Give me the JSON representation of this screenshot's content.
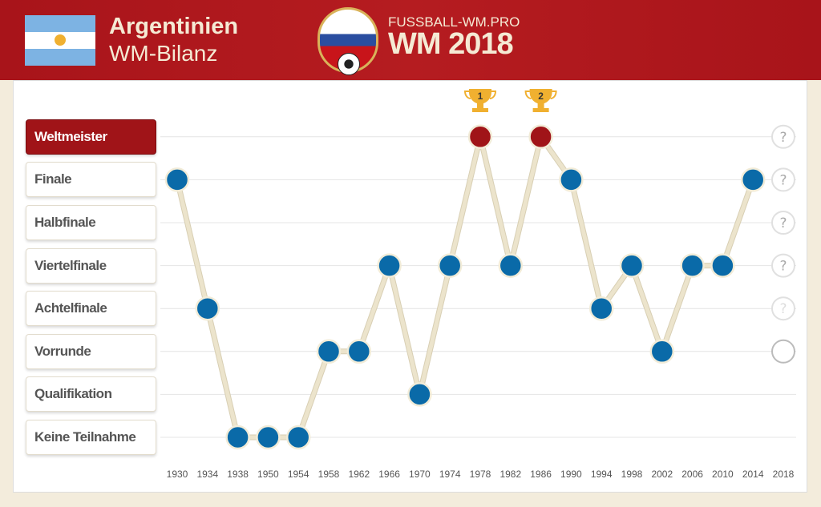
{
  "header": {
    "country": "Argentinien",
    "subtitle": "WM-Bilanz",
    "site": "FUSSBALL-WM.PRO",
    "logo_text": "WM 2018"
  },
  "colors": {
    "header": "#b51c20",
    "point": "#0a6aa8",
    "champion_point": "#a01418",
    "line": "#ece4cc",
    "trophy": "#f0b030"
  },
  "chart_data": {
    "type": "line",
    "categories": [
      "Keine Teilnahme",
      "Qualifikation",
      "Vorrunde",
      "Achtelfinale",
      "Viertelfinale",
      "Halbfinale",
      "Finale",
      "Weltmeister"
    ],
    "x": [
      "1930",
      "1934",
      "1938",
      "1950",
      "1954",
      "1958",
      "1962",
      "1966",
      "1970",
      "1974",
      "1978",
      "1982",
      "1986",
      "1990",
      "1994",
      "1998",
      "2002",
      "2006",
      "2010",
      "2014",
      "2018"
    ],
    "values": [
      6,
      3,
      0,
      0,
      0,
      2,
      2,
      4,
      1,
      4,
      7,
      4,
      7,
      6,
      3,
      4,
      2,
      4,
      4,
      6,
      null
    ],
    "titles": [
      {
        "year": "1978",
        "label": "1"
      },
      {
        "year": "1986",
        "label": "2"
      }
    ],
    "pending_2018": {
      "open_levels": [
        3,
        4,
        5,
        6,
        7
      ],
      "marker": "?"
    },
    "grid": true
  }
}
